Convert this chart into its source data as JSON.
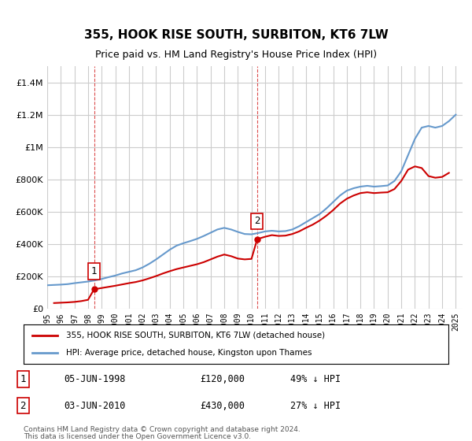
{
  "title": "355, HOOK RISE SOUTH, SURBITON, KT6 7LW",
  "subtitle": "Price paid vs. HM Land Registry's House Price Index (HPI)",
  "red_line_label": "355, HOOK RISE SOUTH, SURBITON, KT6 7LW (detached house)",
  "blue_line_label": "HPI: Average price, detached house, Kingston upon Thames",
  "footnote1": "Contains HM Land Registry data © Crown copyright and database right 2024.",
  "footnote2": "This data is licensed under the Open Government Licence v3.0.",
  "purchase1_date": "05-JUN-1998",
  "purchase1_price": "£120,000",
  "purchase1_hpi": "49% ↓ HPI",
  "purchase2_date": "03-JUN-2010",
  "purchase2_price": "£430,000",
  "purchase2_hpi": "27% ↓ HPI",
  "ylim": [
    0,
    1500000
  ],
  "yticks": [
    0,
    200000,
    400000,
    600000,
    800000,
    1000000,
    1200000,
    1400000
  ],
  "xlim_start": 1995.0,
  "xlim_end": 2025.5,
  "red_color": "#cc0000",
  "blue_color": "#6699cc",
  "grid_color": "#cccccc",
  "background_color": "#ffffff",
  "purchase1_x": 1998.44,
  "purchase1_y": 120000,
  "purchase2_x": 2010.42,
  "purchase2_y": 430000,
  "hpi_years": [
    1995,
    1995.5,
    1996,
    1996.5,
    1997,
    1997.5,
    1998,
    1998.5,
    1999,
    1999.5,
    2000,
    2000.5,
    2001,
    2001.5,
    2002,
    2002.5,
    2003,
    2003.5,
    2004,
    2004.5,
    2005,
    2005.5,
    2006,
    2006.5,
    2007,
    2007.5,
    2008,
    2008.5,
    2009,
    2009.5,
    2010,
    2010.5,
    2011,
    2011.5,
    2012,
    2012.5,
    2013,
    2013.5,
    2014,
    2014.5,
    2015,
    2015.5,
    2016,
    2016.5,
    2017,
    2017.5,
    2018,
    2018.5,
    2019,
    2019.5,
    2020,
    2020.5,
    2021,
    2021.5,
    2022,
    2022.5,
    2023,
    2023.5,
    2024,
    2024.5,
    2025
  ],
  "hpi_values": [
    145000,
    147000,
    149000,
    152000,
    158000,
    163000,
    168000,
    175000,
    184000,
    195000,
    205000,
    218000,
    228000,
    238000,
    255000,
    278000,
    305000,
    335000,
    365000,
    390000,
    405000,
    418000,
    432000,
    450000,
    470000,
    490000,
    500000,
    490000,
    475000,
    462000,
    460000,
    468000,
    478000,
    482000,
    478000,
    480000,
    490000,
    510000,
    535000,
    560000,
    585000,
    620000,
    660000,
    700000,
    730000,
    745000,
    755000,
    760000,
    755000,
    758000,
    762000,
    790000,
    850000,
    950000,
    1050000,
    1120000,
    1130000,
    1120000,
    1130000,
    1160000,
    1200000
  ],
  "red_years": [
    1995.5,
    1996,
    1996.5,
    1997,
    1997.5,
    1998,
    1998.44,
    1999,
    1999.5,
    2000,
    2000.5,
    2001,
    2001.5,
    2002,
    2002.5,
    2003,
    2003.5,
    2004,
    2004.5,
    2005,
    2005.5,
    2006,
    2006.5,
    2007,
    2007.5,
    2008,
    2008.5,
    2009,
    2009.5,
    2010,
    2010.42,
    2011,
    2011.5,
    2012,
    2012.5,
    2013,
    2013.5,
    2014,
    2014.5,
    2015,
    2015.5,
    2016,
    2016.5,
    2017,
    2017.5,
    2018,
    2018.5,
    2019,
    2019.5,
    2020,
    2020.5,
    2021,
    2021.5,
    2022,
    2022.5,
    2023,
    2023.5,
    2024,
    2024.5
  ],
  "red_values": [
    35000,
    37000,
    39000,
    42000,
    47000,
    55000,
    120000,
    128000,
    135000,
    142000,
    150000,
    158000,
    165000,
    175000,
    188000,
    202000,
    218000,
    232000,
    245000,
    255000,
    265000,
    275000,
    288000,
    305000,
    322000,
    335000,
    325000,
    310000,
    305000,
    308000,
    430000,
    445000,
    455000,
    450000,
    452000,
    462000,
    478000,
    500000,
    520000,
    545000,
    575000,
    610000,
    650000,
    680000,
    700000,
    715000,
    720000,
    715000,
    718000,
    720000,
    740000,
    790000,
    860000,
    880000,
    870000,
    820000,
    810000,
    815000,
    840000
  ]
}
